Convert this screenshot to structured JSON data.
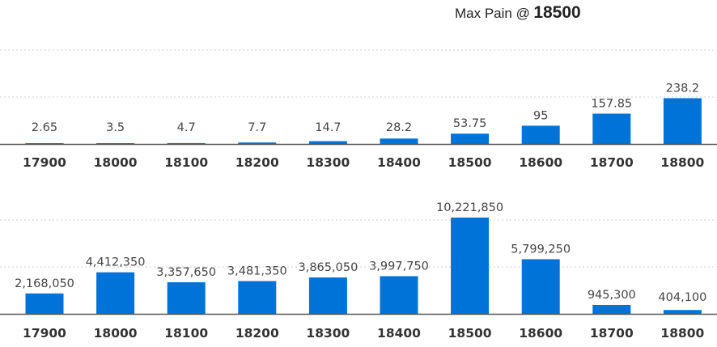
{
  "header": {
    "label": "Max Pain @",
    "value": "18500"
  },
  "colors": {
    "bar": "#0073d9",
    "axis": "#555555",
    "grid": "#cfcfcf"
  },
  "chart_data": [
    {
      "type": "bar",
      "categories": [
        "17900",
        "18000",
        "18100",
        "18200",
        "18300",
        "18400",
        "18500",
        "18600",
        "18700",
        "18800"
      ],
      "values": [
        2.65,
        3.5,
        4.7,
        7.7,
        14.7,
        28.2,
        53.75,
        95,
        157.85,
        238.2
      ],
      "value_labels": [
        "2.65",
        "3.5",
        "4.7",
        "7.7",
        "14.7",
        "28.2",
        "53.75",
        "95",
        "157.85",
        "238.2"
      ],
      "ylim": [
        0,
        240
      ],
      "grid": true
    },
    {
      "type": "bar",
      "categories": [
        "17900",
        "18000",
        "18100",
        "18200",
        "18300",
        "18400",
        "18500",
        "18600",
        "18700",
        "18800"
      ],
      "values": [
        2168050,
        4412350,
        3357650,
        3481350,
        3865050,
        3997750,
        10221850,
        5799250,
        945300,
        404100
      ],
      "value_labels": [
        "2,168,050",
        "4,412,350",
        "3,357,650",
        "3,481,350",
        "3,865,050",
        "3,997,750",
        "10,221,850",
        "5,799,250",
        "945,300",
        "404,100"
      ],
      "ylim": [
        0,
        10221850
      ],
      "grid": true
    }
  ]
}
